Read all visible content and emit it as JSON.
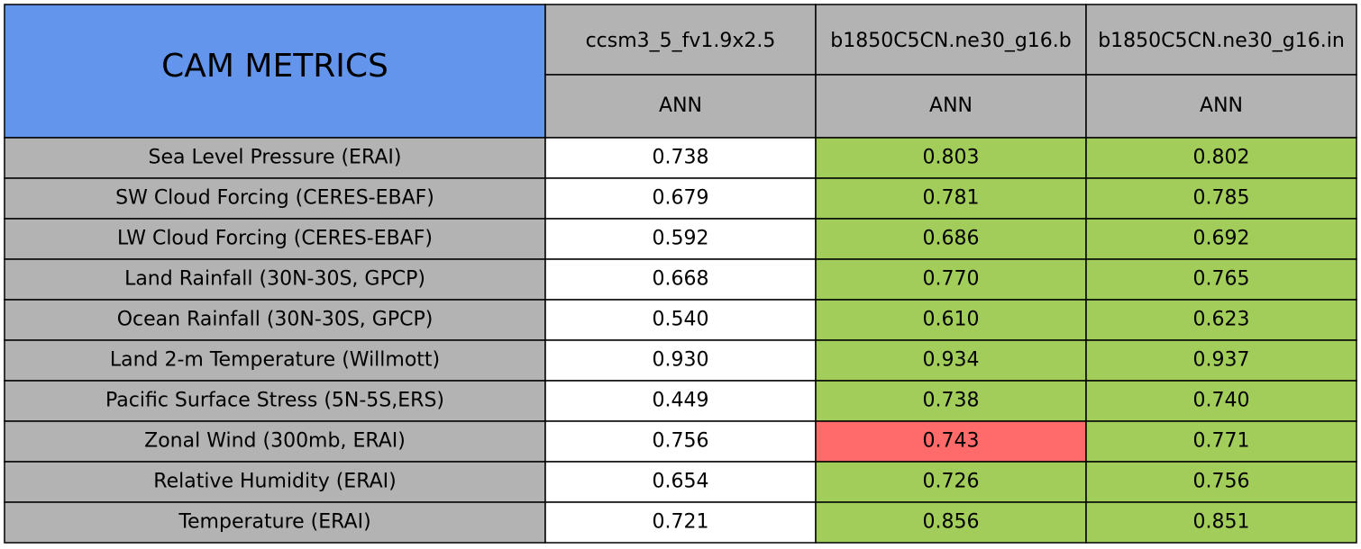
{
  "table": {
    "title": "CAM METRICS",
    "title_color": "#6495ed",
    "header_color": "#b3b3b3",
    "columns": [
      {
        "name": "ccsm3_5_fv1.9x2.5",
        "season": "ANN"
      },
      {
        "name": "b1850C5CN.ne30_g16.b",
        "season": "ANN"
      },
      {
        "name": "b1850C5CN.ne30_g16.in",
        "season": "ANN"
      }
    ],
    "rows": [
      {
        "label": "Sea Level Pressure (ERAI)",
        "values": [
          "0.738",
          "0.803",
          "0.802"
        ],
        "fills": [
          "#ffffff",
          "#a2cd5a",
          "#a2cd5a"
        ]
      },
      {
        "label": "SW Cloud Forcing (CERES-EBAF)",
        "values": [
          "0.679",
          "0.781",
          "0.785"
        ],
        "fills": [
          "#ffffff",
          "#a2cd5a",
          "#a2cd5a"
        ]
      },
      {
        "label": "LW Cloud Forcing (CERES-EBAF)",
        "values": [
          "0.592",
          "0.686",
          "0.692"
        ],
        "fills": [
          "#ffffff",
          "#a2cd5a",
          "#a2cd5a"
        ]
      },
      {
        "label": "Land Rainfall (30N-30S, GPCP)",
        "values": [
          "0.668",
          "0.770",
          "0.765"
        ],
        "fills": [
          "#ffffff",
          "#a2cd5a",
          "#a2cd5a"
        ]
      },
      {
        "label": "Ocean Rainfall (30N-30S, GPCP)",
        "values": [
          "0.540",
          "0.610",
          "0.623"
        ],
        "fills": [
          "#ffffff",
          "#a2cd5a",
          "#a2cd5a"
        ]
      },
      {
        "label": "Land 2-m Temperature (Willmott)",
        "values": [
          "0.930",
          "0.934",
          "0.937"
        ],
        "fills": [
          "#ffffff",
          "#a2cd5a",
          "#a2cd5a"
        ]
      },
      {
        "label": "Pacific Surface Stress (5N-5S,ERS)",
        "values": [
          "0.449",
          "0.738",
          "0.740"
        ],
        "fills": [
          "#ffffff",
          "#a2cd5a",
          "#a2cd5a"
        ]
      },
      {
        "label": "Zonal Wind (300mb, ERAI)",
        "values": [
          "0.756",
          "0.743",
          "0.771"
        ],
        "fills": [
          "#ffffff",
          "#ff6a6a",
          "#a2cd5a"
        ]
      },
      {
        "label": "Relative Humidity (ERAI)",
        "values": [
          "0.654",
          "0.726",
          "0.756"
        ],
        "fills": [
          "#ffffff",
          "#a2cd5a",
          "#a2cd5a"
        ]
      },
      {
        "label": "Temperature (ERAI)",
        "values": [
          "0.721",
          "0.856",
          "0.851"
        ],
        "fills": [
          "#ffffff",
          "#a2cd5a",
          "#a2cd5a"
        ]
      }
    ]
  }
}
